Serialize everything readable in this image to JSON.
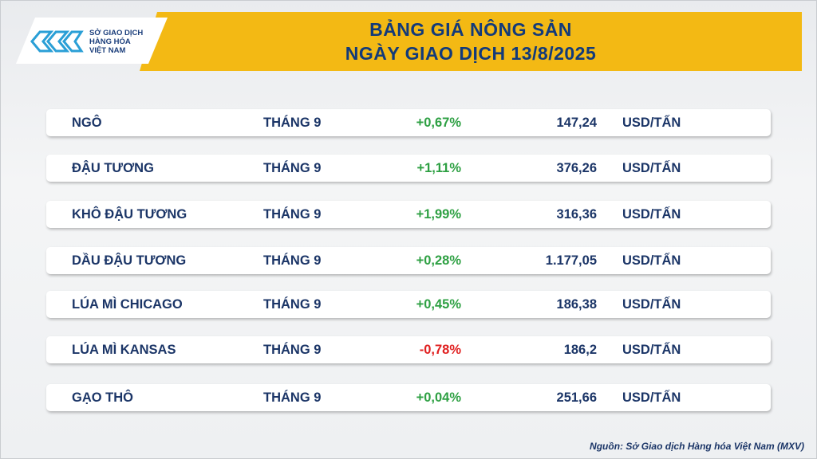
{
  "header": {
    "logo": [
      "SỞ GIAO DỊCH",
      "HÀNG HÓA",
      "VIỆT NAM"
    ],
    "title": [
      "BẢNG GIÁ NÔNG SẢN",
      "NGÀY GIAO DỊCH 13/8/2025"
    ]
  },
  "table": {
    "rows": [
      [
        "NGÔ",
        "THÁNG 9",
        "+0,67%",
        "147,24",
        "USD/TẤN"
      ],
      [
        "ĐẬU TƯƠNG",
        "THÁNG 9",
        "+1,11%",
        "376,26",
        "USD/TẤN"
      ],
      [
        "KHÔ ĐẬU TƯƠNG",
        "THÁNG 9",
        "+1,99%",
        "316,36",
        "USD/TẤN"
      ],
      [
        "DẦU ĐẬU TƯƠNG",
        "THÁNG 9",
        "+0,28%",
        "1.177,05",
        "USD/TẤN"
      ],
      [
        "LÚA MÌ CHICAGO",
        "THÁNG 9",
        "+0,45%",
        "186,38",
        "USD/TẤN"
      ],
      [
        "LÚA MÌ KANSAS",
        "THÁNG 9",
        "-0,78%",
        "186,2",
        "USD/TẤN"
      ],
      [
        "GẠO THÔ",
        "THÁNG 9",
        "+0,04%",
        "251,66",
        "USD/TẤN"
      ]
    ]
  },
  "source": "Nguồn: Sở Giao dịch Hàng hóa Việt Nam (MXV)"
}
